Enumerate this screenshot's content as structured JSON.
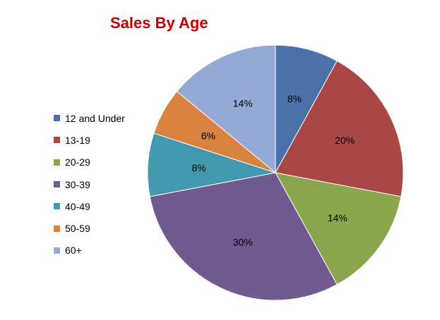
{
  "chart_data": {
    "type": "pie",
    "title": "Sales By Age",
    "categories": [
      "12 and Under",
      "13-19",
      "20-29",
      "30-39",
      "40-49",
      "50-59",
      "60+"
    ],
    "values": [
      8,
      20,
      14,
      30,
      8,
      6,
      14
    ],
    "value_labels": [
      "8%",
      "20%",
      "14%",
      "30%",
      "8%",
      "6%",
      "14%"
    ],
    "colors": [
      "#4a72a8",
      "#a94646",
      "#8aa64d",
      "#715a8f",
      "#4299ae",
      "#da8340",
      "#94a9d3"
    ],
    "title_color": "#c00000",
    "legend_position": "left",
    "start_angle": "12 o'clock",
    "direction": "clockwise"
  }
}
